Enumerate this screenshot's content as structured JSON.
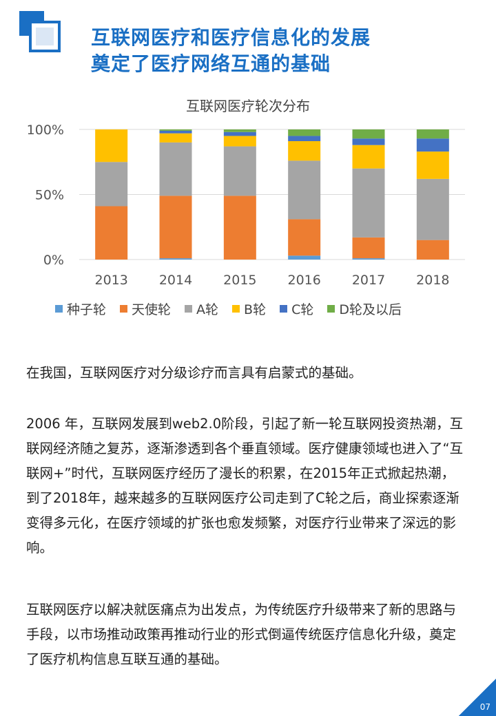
{
  "header": {
    "title_line1": "互联网医疗和医疗信息化的发展",
    "title_line2": "奠定了医疗网络互通的基础"
  },
  "colors": {
    "title": "#1a6fc4",
    "seed": "#5b9bd5",
    "angel": "#ed7d31",
    "a": "#a5a5a5",
    "b": "#ffc000",
    "c": "#4472c4",
    "d": "#70ad47"
  },
  "chart_data": {
    "type": "bar",
    "stacked": true,
    "title": "互联网医疗轮次分布",
    "categories": [
      "2013",
      "2014",
      "2015",
      "2016",
      "2017",
      "2018"
    ],
    "yticks": [
      "0%",
      "50%",
      "100%"
    ],
    "ylim": [
      0,
      100
    ],
    "legend_position": "bottom",
    "series": [
      {
        "name": "种子轮",
        "color": "#5b9bd5",
        "values": [
          0,
          1,
          0,
          3,
          1,
          0
        ]
      },
      {
        "name": "天使轮",
        "color": "#ed7d31",
        "values": [
          41,
          48,
          49,
          28,
          16,
          15
        ]
      },
      {
        "name": "A轮",
        "color": "#a5a5a5",
        "values": [
          34,
          41,
          38,
          45,
          53,
          47
        ]
      },
      {
        "name": "B轮",
        "color": "#ffc000",
        "values": [
          25,
          7,
          8,
          15,
          18,
          21
        ]
      },
      {
        "name": "C轮",
        "color": "#4472c4",
        "values": [
          0,
          2,
          3,
          4,
          5,
          10
        ]
      },
      {
        "name": "D轮及以后",
        "color": "#70ad47",
        "values": [
          0,
          1,
          2,
          5,
          7,
          7
        ]
      }
    ]
  },
  "paragraphs": {
    "p1": "在我国，互联网医疗对分级诊疗而言具有启蒙式的基础。",
    "p2": "2006 年，互联网发展到web2.0阶段，引起了新一轮互联网投资热潮，互联网经济随之复苏，逐渐渗透到各个垂直领域。医疗健康领域也进入了“互联网+”时代，互联网医疗经历了漫长的积累，在2015年正式掀起热潮，到了2018年，越来越多的互联网医疗公司走到了C轮之后，商业探索逐渐变得多元化，在医疗领域的扩张也愈发频繁，对医疗行业带来了深远的影响。",
    "p3": "互联网医疗以解决就医痛点为出发点，为传统医疗升级带来了新的思路与手段，以市场推动政策再推动行业的形式倒逼传统医疗信息化升级，奠定了医疗机构信息互联互通的基础。"
  },
  "footer": {
    "page_number": "07"
  }
}
